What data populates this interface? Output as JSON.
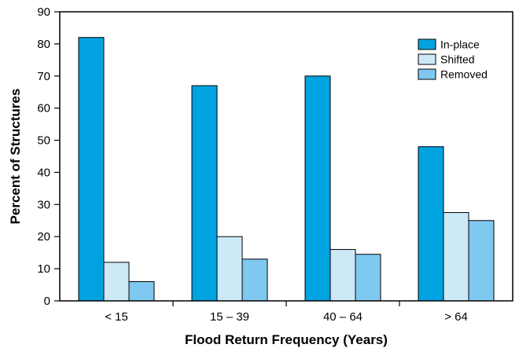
{
  "chart_data": {
    "type": "bar",
    "xlabel": "Flood Return Frequency (Years)",
    "ylabel": "Percent of Structures",
    "categories": [
      "< 15",
      "15 – 39",
      "40 – 64",
      "> 64"
    ],
    "ylim": [
      0,
      90
    ],
    "yticks": [
      "0",
      "10",
      "20",
      "30",
      "40",
      "50",
      "60",
      "70",
      "80",
      "90"
    ],
    "series": [
      {
        "name": "In-place",
        "values": [
          82,
          67,
          70,
          48
        ],
        "color": "#00a3e0"
      },
      {
        "name": "Shifted",
        "values": [
          12,
          20,
          16,
          27.5
        ],
        "color": "#cde9f8"
      },
      {
        "name": "Removed",
        "values": [
          6,
          13,
          14.5,
          25
        ],
        "color": "#7fc8ef"
      }
    ],
    "legend_position": "top-right",
    "grid": false
  }
}
